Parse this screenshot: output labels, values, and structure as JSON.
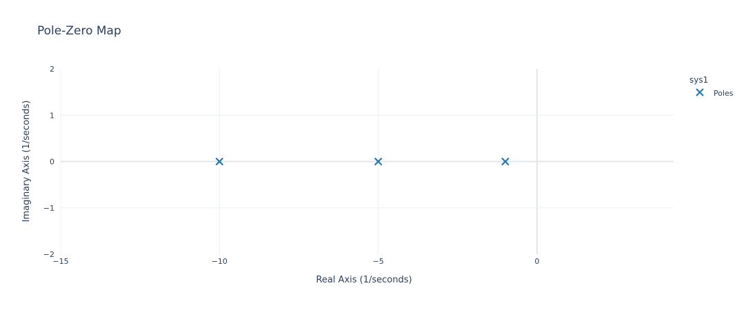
{
  "chart_data": {
    "type": "scatter",
    "title": "Pole-Zero Map",
    "xlabel": "Real Axis (1/seconds)",
    "ylabel": "Imaginary Axis (1/seconds)",
    "xlim": [
      -15,
      4.3
    ],
    "ylim": [
      -2,
      2
    ],
    "xticks": [
      -15,
      -10,
      -5,
      0
    ],
    "xtick_labels": [
      "−15",
      "−10",
      "−5",
      "0"
    ],
    "yticks": [
      -2,
      -1,
      0,
      1,
      2
    ],
    "ytick_labels": [
      "−2",
      "−1",
      "0",
      "1",
      "2"
    ],
    "grid": true,
    "legend": {
      "title": "sys1",
      "placement": "right"
    },
    "series": [
      {
        "name": "Poles",
        "marker": "x",
        "color": "#1f77b4",
        "points": [
          {
            "x": -10,
            "y": 0
          },
          {
            "x": -5,
            "y": 0
          },
          {
            "x": -1,
            "y": 0
          }
        ]
      }
    ]
  }
}
